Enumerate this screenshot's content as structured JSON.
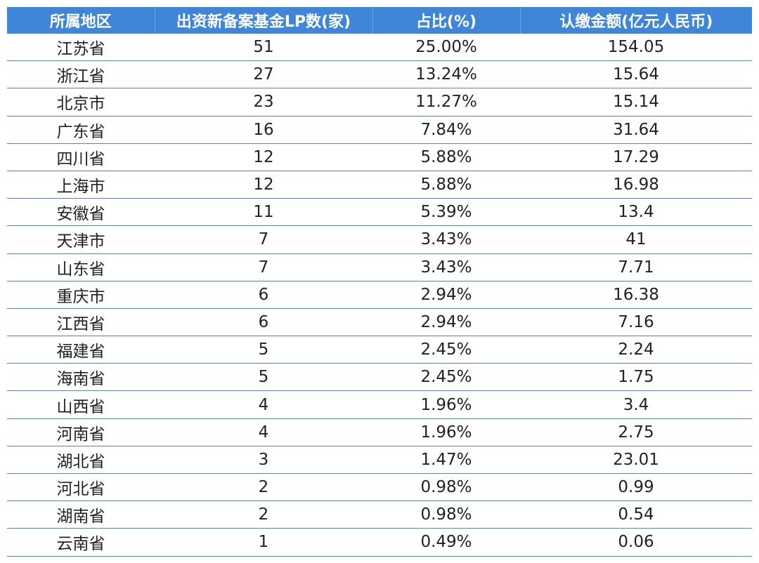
{
  "table": {
    "headers": [
      "所属地区",
      "出资新备案基金LP数(家)",
      "占比(%)",
      "认缴金额(亿元人民币)"
    ],
    "rows": [
      [
        "江苏省",
        "51",
        "25.00%",
        "154.05"
      ],
      [
        "浙江省",
        "27",
        "13.24%",
        "15.64"
      ],
      [
        "北京市",
        "23",
        "11.27%",
        "15.14"
      ],
      [
        "广东省",
        "16",
        "7.84%",
        "31.64"
      ],
      [
        "四川省",
        "12",
        "5.88%",
        "17.29"
      ],
      [
        "上海市",
        "12",
        "5.88%",
        "16.98"
      ],
      [
        "安徽省",
        "11",
        "5.39%",
        "13.4"
      ],
      [
        "天津市",
        "7",
        "3.43%",
        "41"
      ],
      [
        "山东省",
        "7",
        "3.43%",
        "7.71"
      ],
      [
        "重庆市",
        "6",
        "2.94%",
        "16.38"
      ],
      [
        "江西省",
        "6",
        "2.94%",
        "7.16"
      ],
      [
        "福建省",
        "5",
        "2.45%",
        "2.24"
      ],
      [
        "海南省",
        "5",
        "2.45%",
        "1.75"
      ],
      [
        "山西省",
        "4",
        "1.96%",
        "3.4"
      ],
      [
        "河南省",
        "4",
        "1.96%",
        "2.75"
      ],
      [
        "湖北省",
        "3",
        "1.47%",
        "23.01"
      ],
      [
        "河北省",
        "2",
        "0.98%",
        "0.99"
      ],
      [
        "湖南省",
        "2",
        "0.98%",
        "0.54"
      ],
      [
        "云南省",
        "1",
        "0.49%",
        "0.06"
      ]
    ]
  },
  "colors": {
    "header_bg": "#3f86d8",
    "row_line": "#4a88cc"
  }
}
